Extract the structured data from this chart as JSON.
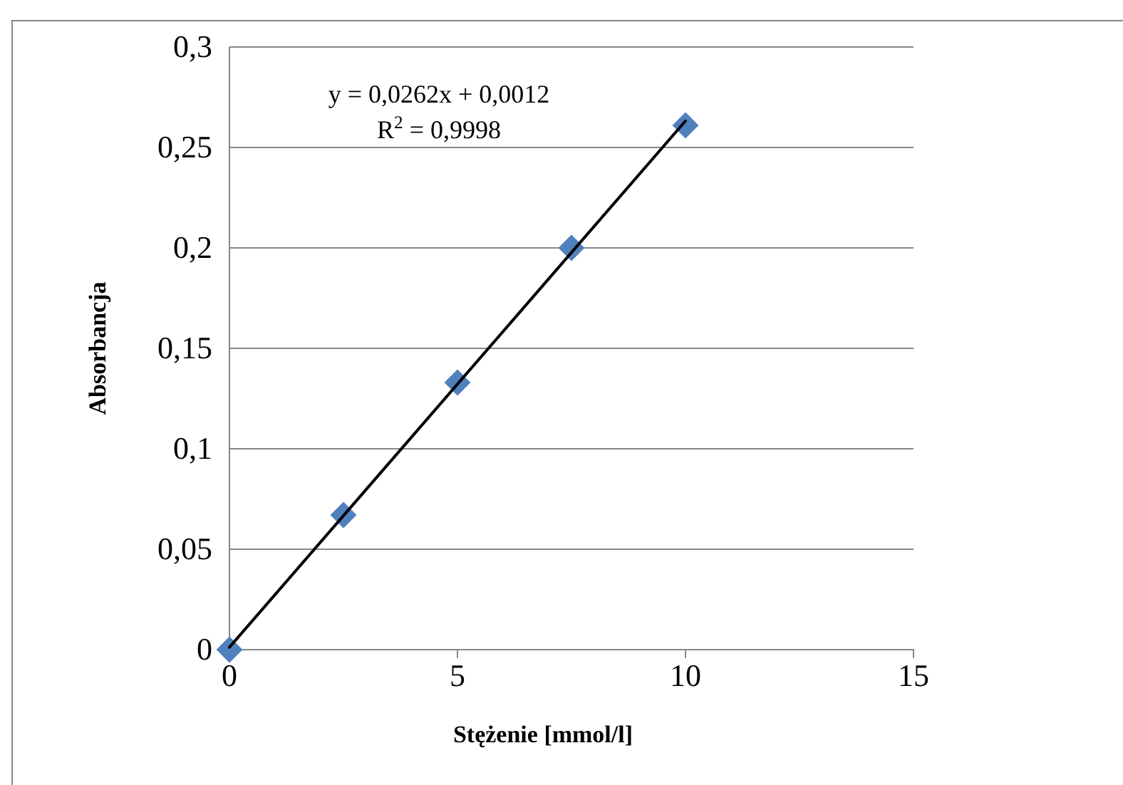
{
  "chart_data": {
    "type": "scatter",
    "xlabel": "Stężenie [mmol/l]",
    "ylabel": "Absorbancja",
    "xlim": [
      0,
      15
    ],
    "xticks": [
      0,
      5,
      10,
      15
    ],
    "ylim": [
      0,
      0.3
    ],
    "yticks": [
      {
        "value": 0,
        "label": "0"
      },
      {
        "value": 0.05,
        "label": "0,05"
      },
      {
        "value": 0.1,
        "label": "0,1"
      },
      {
        "value": 0.15,
        "label": "0,15"
      },
      {
        "value": 0.2,
        "label": "0,2"
      },
      {
        "value": 0.25,
        "label": "0,25"
      },
      {
        "value": 0.3,
        "label": "0,3"
      }
    ],
    "grid": "y",
    "marker": "diamond",
    "series": [
      {
        "type": "line",
        "color": "#000000",
        "x": [
          0,
          10
        ],
        "values": [
          0.0012,
          0.2632
        ],
        "marker": "none",
        "line_style": "solid"
      },
      {
        "color": "#4f81bd",
        "x": [
          0,
          2.5,
          5,
          7.5,
          10
        ],
        "values": [
          0,
          0.067,
          0.133,
          0.2,
          0.261
        ]
      }
    ],
    "annotations": [
      "y = 0,0262x + 0,0012",
      "R$^{2}$ = 0,9998"
    ]
  }
}
